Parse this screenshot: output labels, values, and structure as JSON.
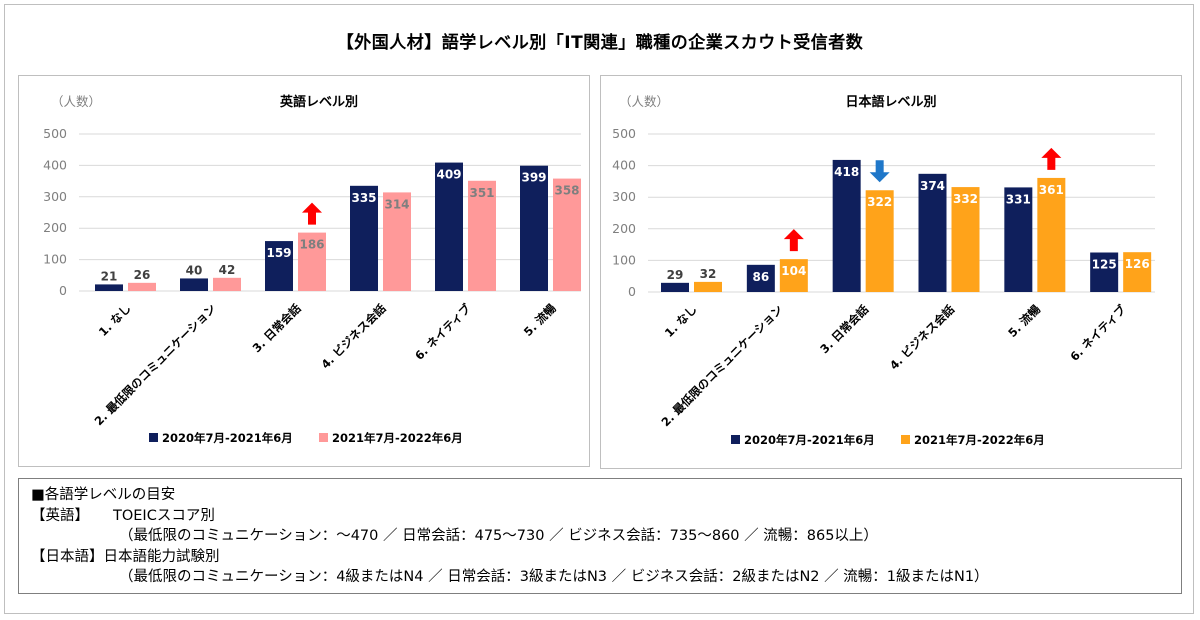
{
  "title": "【外国人材】語学レベル別「IT関連」職種の企業スカウト受信者数",
  "colors": {
    "series1": "#0f1f5c",
    "eng_series2": "#ff9999",
    "jp_series2": "#ffa31a",
    "eng_label2": "#7f7f7f",
    "arrow_up": "#ff0000",
    "arrow_down": "#1f77c9",
    "grid": "#d9d9d9",
    "axis_text": "#7f7f7f"
  },
  "chart_data": [
    {
      "type": "bar",
      "title": "英語レベル別",
      "ylabel": "（人数）",
      "ylim": [
        0,
        500
      ],
      "yticks": [
        0,
        100,
        200,
        300,
        400,
        500
      ],
      "categories": [
        "1. なし",
        "2. 最低限のコミュニケーション",
        "3. 日常会話",
        "4. ビジネス会話",
        "6. ネイティブ",
        "5. 流暢"
      ],
      "series": [
        {
          "name": "2020年7月-2021年6月",
          "values": [
            21,
            40,
            159,
            335,
            409,
            399
          ]
        },
        {
          "name": "2021年7月-2022年6月",
          "values": [
            26,
            42,
            186,
            314,
            351,
            358
          ]
        }
      ],
      "annotations": [
        {
          "category": "3. 日常会話",
          "series": 1,
          "marker": "arrow-up"
        }
      ],
      "legend": "bottom"
    },
    {
      "type": "bar",
      "title": "日本語レベル別",
      "ylabel": "（人数）",
      "ylim": [
        0,
        500
      ],
      "yticks": [
        0,
        100,
        200,
        300,
        400,
        500
      ],
      "categories": [
        "1. なし",
        "2. 最低限のコミュニケーション",
        "3. 日常会話",
        "4. ビジネス会話",
        "5. 流暢",
        "6. ネイティブ"
      ],
      "series": [
        {
          "name": "2020年7月-2021年6月",
          "values": [
            29,
            86,
            418,
            374,
            331,
            125
          ]
        },
        {
          "name": "2021年7月-2022年6月",
          "values": [
            32,
            104,
            322,
            332,
            361,
            126
          ]
        }
      ],
      "annotations": [
        {
          "category": "2. 最低限のコミュニケーション",
          "series": 1,
          "marker": "arrow-up"
        },
        {
          "category": "3. 日常会話",
          "series": 1,
          "marker": "arrow-down"
        },
        {
          "category": "5. 流暢",
          "series": 1,
          "marker": "arrow-up"
        }
      ],
      "legend": "bottom"
    }
  ],
  "notes": {
    "heading": "■各語学レベルの目安",
    "english_head": "【英語】",
    "english_label": "TOEICスコア別",
    "english_detail": "（最低限のコミュニケーション：～470 ／ 日常会話：475～730 ／ ビジネス会話：735～860 ／ 流暢：865以上）",
    "japanese_head": "【日本語】",
    "japanese_label": "日本語能力試験別",
    "japanese_detail": "（最低限のコミュニケーション：4級またはN4 ／ 日常会話：3級またはN3 ／ ビジネス会話：2級またはN2 ／ 流暢：1級またはN1）"
  }
}
